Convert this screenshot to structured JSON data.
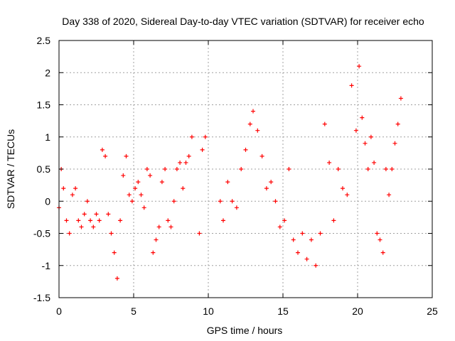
{
  "chart_data": {
    "type": "scatter",
    "title": "Day 338 of 2020, Sidereal Day-to-day VTEC variation (SDTVAR) for receiver echo",
    "xlabel": "GPS time / hours",
    "ylabel": "SDTVAR / TECUs",
    "xlim": [
      0,
      25
    ],
    "ylim": [
      -1.5,
      2.5
    ],
    "xticks": [
      0,
      5,
      10,
      15,
      20,
      25
    ],
    "yticks": [
      -1.5,
      -1,
      -0.5,
      0,
      0.5,
      1,
      1.5,
      2,
      2.5
    ],
    "xtick_labels": [
      "0",
      "5",
      "10",
      "15",
      "20",
      "25"
    ],
    "ytick_labels": [
      "-1.5",
      "-1",
      "-0.5",
      "0",
      "0.5",
      "1",
      "1.5",
      "2",
      "2.5"
    ],
    "grid": true,
    "marker": "+",
    "color": "#ff0000",
    "series": [
      {
        "name": "SDTVAR",
        "x": [
          0.0,
          0.15,
          0.3,
          0.5,
          0.7,
          0.9,
          1.1,
          1.3,
          1.5,
          1.7,
          1.9,
          2.1,
          2.3,
          2.5,
          2.7,
          2.9,
          3.1,
          3.3,
          3.5,
          3.7,
          3.9,
          4.1,
          4.3,
          4.5,
          4.7,
          4.9,
          5.1,
          5.3,
          5.5,
          5.7,
          5.9,
          6.1,
          6.3,
          6.5,
          6.7,
          6.9,
          7.1,
          7.3,
          7.5,
          7.7,
          7.9,
          8.1,
          8.3,
          8.5,
          8.7,
          8.9,
          9.4,
          9.6,
          9.8,
          10.8,
          11.0,
          11.3,
          11.6,
          11.9,
          12.2,
          12.5,
          12.8,
          13.0,
          13.3,
          13.6,
          13.9,
          14.2,
          14.5,
          14.8,
          15.1,
          15.4,
          15.7,
          16.0,
          16.3,
          16.6,
          16.9,
          17.2,
          17.5,
          17.8,
          18.1,
          18.4,
          18.7,
          19.0,
          19.3,
          19.6,
          19.9,
          20.1,
          20.3,
          20.5,
          20.7,
          20.9,
          21.1,
          21.3,
          21.5,
          21.7,
          21.9,
          22.1,
          22.3,
          22.5,
          22.7,
          22.9
        ],
        "y": [
          -0.1,
          0.5,
          0.2,
          -0.3,
          -0.5,
          0.1,
          0.2,
          -0.3,
          -0.4,
          -0.2,
          0.0,
          -0.3,
          -0.4,
          -0.2,
          -0.3,
          0.8,
          0.7,
          -0.2,
          -0.5,
          -0.8,
          -1.2,
          -0.3,
          0.4,
          0.7,
          0.1,
          0.0,
          0.2,
          0.3,
          0.1,
          -0.1,
          0.5,
          0.4,
          -0.8,
          -0.6,
          -0.4,
          0.3,
          0.5,
          -0.3,
          -0.4,
          0.0,
          0.5,
          0.6,
          0.2,
          0.6,
          0.7,
          1.0,
          -0.5,
          0.8,
          1.0,
          0.0,
          -0.3,
          0.3,
          0.0,
          -0.1,
          0.5,
          0.8,
          1.2,
          1.4,
          1.1,
          0.7,
          0.2,
          0.3,
          0.0,
          -0.4,
          -0.3,
          0.5,
          -0.6,
          -0.8,
          -0.5,
          -0.9,
          -0.6,
          -1.0,
          -0.5,
          1.2,
          0.6,
          -0.3,
          0.5,
          0.2,
          0.1,
          1.8,
          1.1,
          2.1,
          1.3,
          0.9,
          0.5,
          1.0,
          0.6,
          -0.5,
          -0.6,
          -0.8,
          0.5,
          0.1,
          0.5,
          0.9,
          1.2,
          1.6
        ]
      }
    ]
  }
}
